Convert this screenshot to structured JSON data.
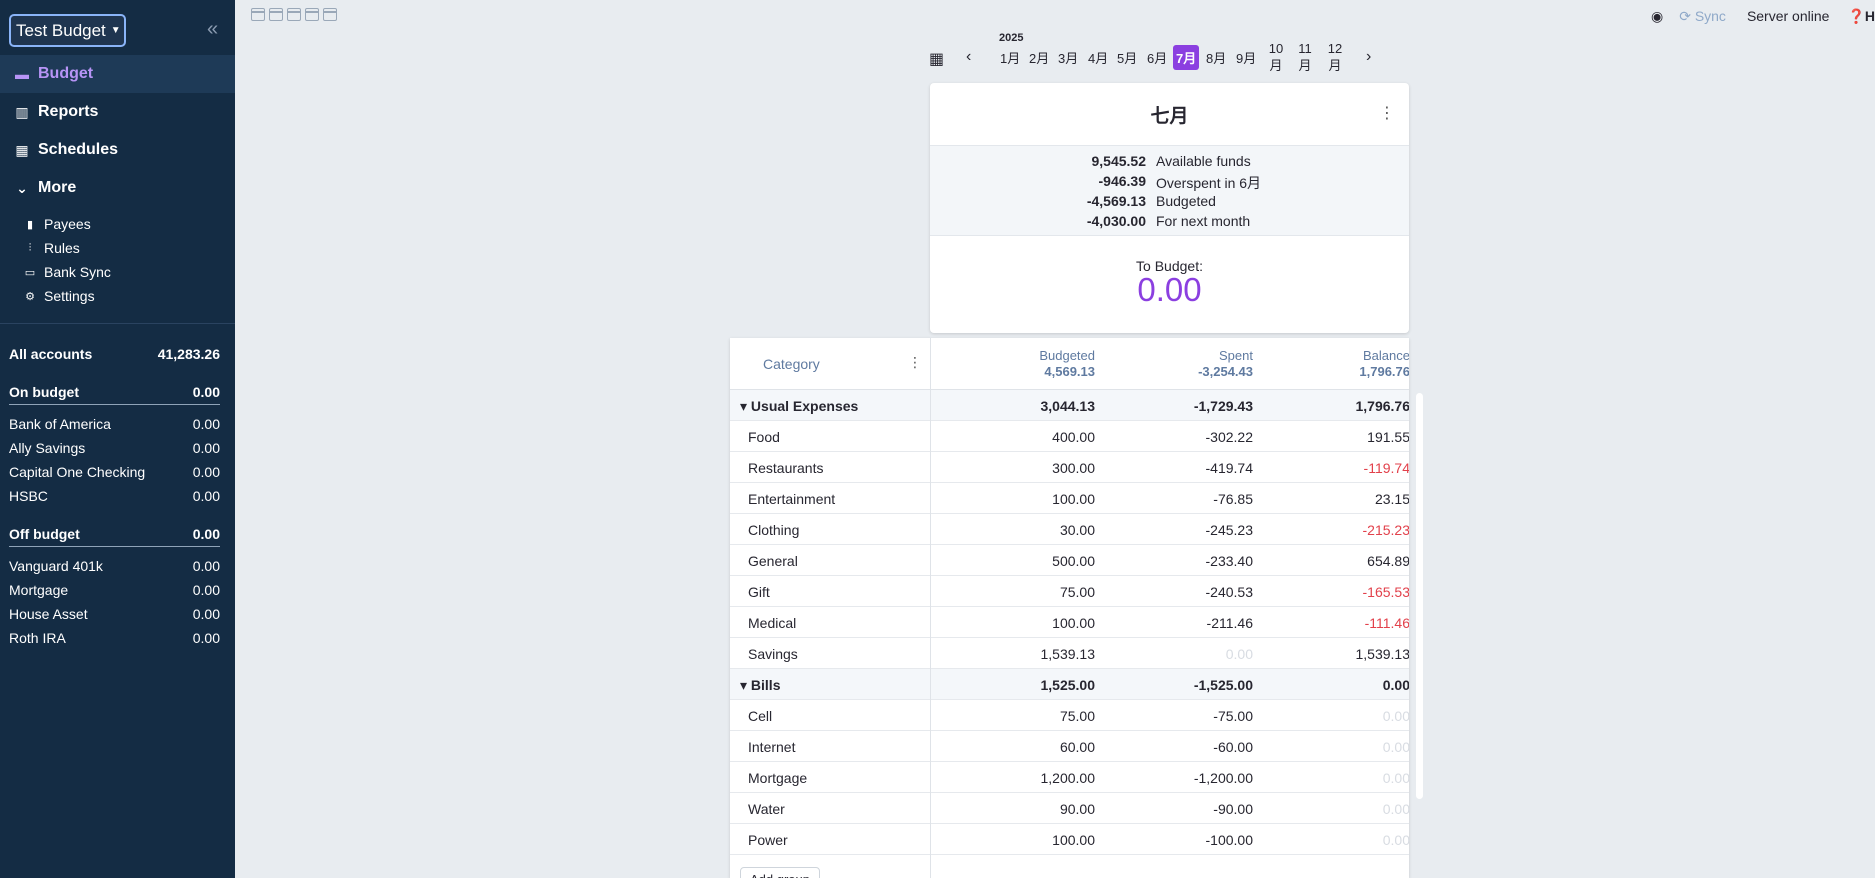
{
  "sidebar": {
    "budget_name": "Test Budget",
    "nav": [
      {
        "label": "Budget",
        "icon": "wallet-icon"
      },
      {
        "label": "Reports",
        "icon": "chart-icon"
      },
      {
        "label": "Schedules",
        "icon": "calendar-icon"
      },
      {
        "label": "More",
        "icon": "chevron-down-icon"
      }
    ],
    "more_items": [
      {
        "label": "Payees",
        "icon": "book-icon"
      },
      {
        "label": "Rules",
        "icon": "sliders-icon"
      },
      {
        "label": "Bank Sync",
        "icon": "card-icon"
      },
      {
        "label": "Settings",
        "icon": "gear-icon"
      }
    ],
    "all_accounts": {
      "label": "All accounts",
      "value": "41,283.26"
    },
    "on_budget": {
      "label": "On budget",
      "value": "0.00"
    },
    "on_budget_accounts": [
      {
        "name": "Bank of America",
        "value": "0.00"
      },
      {
        "name": "Ally Savings",
        "value": "0.00"
      },
      {
        "name": "Capital One Checking",
        "value": "0.00"
      },
      {
        "name": "HSBC",
        "value": "0.00"
      }
    ],
    "off_budget": {
      "label": "Off budget",
      "value": "0.00"
    },
    "off_budget_accounts": [
      {
        "name": "Vanguard 401k",
        "value": "0.00"
      },
      {
        "name": "Mortgage",
        "value": "0.00"
      },
      {
        "name": "House Asset",
        "value": "0.00"
      },
      {
        "name": "Roth IRA",
        "value": "0.00"
      }
    ]
  },
  "topbar": {
    "sync": "Sync",
    "server_status": "Server online",
    "help": "H"
  },
  "month_picker": {
    "year": "2025",
    "months": [
      "1月",
      "2月",
      "3月",
      "4月",
      "5月",
      "6月",
      "7月",
      "8月",
      "9月",
      "10月",
      "11月",
      "12月"
    ],
    "selected": "7月"
  },
  "summary": {
    "title": "七月",
    "rows": [
      {
        "value": "9,545.52",
        "label": "Available funds"
      },
      {
        "value": "-946.39",
        "label": "Overspent in 6月"
      },
      {
        "value": "-4,569.13",
        "label": "Budgeted"
      },
      {
        "value": "-4,030.00",
        "label": "For next month"
      }
    ],
    "to_budget_label": "To Budget:",
    "to_budget_value": "0.00",
    "accent": "#8b3fe0"
  },
  "table": {
    "header": {
      "category": "Category",
      "budgeted": "Budgeted",
      "budgeted_total": "4,569.13",
      "spent": "Spent",
      "spent_total": "-3,254.43",
      "balance": "Balance",
      "balance_total": "1,796.76"
    },
    "rows": [
      {
        "group": true,
        "name": "Usual Expenses",
        "budgeted": "3,044.13",
        "spent": "-1,729.43",
        "balance": "1,796.76",
        "bal_class": ""
      },
      {
        "name": "Food",
        "budgeted": "400.00",
        "spent": "-302.22",
        "balance": "191.55",
        "bal_class": ""
      },
      {
        "name": "Restaurants",
        "budgeted": "300.00",
        "spent": "-419.74",
        "balance": "-119.74",
        "bal_class": "neg"
      },
      {
        "name": "Entertainment",
        "budgeted": "100.00",
        "spent": "-76.85",
        "balance": "23.15",
        "bal_class": ""
      },
      {
        "name": "Clothing",
        "budgeted": "30.00",
        "spent": "-245.23",
        "balance": "-215.23",
        "bal_class": "neg"
      },
      {
        "name": "General",
        "budgeted": "500.00",
        "spent": "-233.40",
        "balance": "654.89",
        "bal_class": ""
      },
      {
        "name": "Gift",
        "budgeted": "75.00",
        "spent": "-240.53",
        "balance": "-165.53",
        "bal_class": "neg"
      },
      {
        "name": "Medical",
        "budgeted": "100.00",
        "spent": "-211.46",
        "balance": "-111.46",
        "bal_class": "neg"
      },
      {
        "name": "Savings",
        "budgeted": "1,539.13",
        "spent": "0.00",
        "spent_class": "zero",
        "balance": "1,539.13",
        "bal_class": ""
      },
      {
        "group": true,
        "name": "Bills",
        "budgeted": "1,525.00",
        "spent": "-1,525.00",
        "balance": "0.00",
        "bal_class": ""
      },
      {
        "name": "Cell",
        "budgeted": "75.00",
        "spent": "-75.00",
        "balance": "0.00",
        "bal_class": "zero"
      },
      {
        "name": "Internet",
        "budgeted": "60.00",
        "spent": "-60.00",
        "balance": "0.00",
        "bal_class": "zero"
      },
      {
        "name": "Mortgage",
        "budgeted": "1,200.00",
        "spent": "-1,200.00",
        "balance": "0.00",
        "bal_class": "zero"
      },
      {
        "name": "Water",
        "budgeted": "90.00",
        "spent": "-90.00",
        "balance": "0.00",
        "bal_class": "zero"
      },
      {
        "name": "Power",
        "budgeted": "100.00",
        "spent": "-100.00",
        "balance": "0.00",
        "bal_class": "zero"
      }
    ],
    "add_group": "Add group"
  }
}
